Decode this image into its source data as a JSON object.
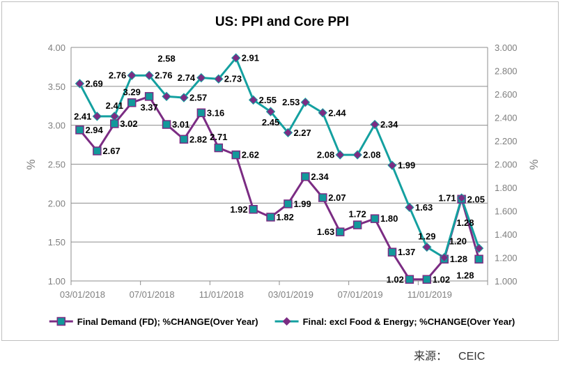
{
  "chart_data": {
    "type": "line",
    "title": "US: PPI and Core PPI",
    "ylabel_left": "%",
    "ylabel_right": "%",
    "ylim_left": [
      1.0,
      4.0
    ],
    "ylim_right": [
      1.0,
      3.0
    ],
    "yticks_left": [
      "4.00",
      "3.50",
      "3.00",
      "2.50",
      "2.00",
      "1.50",
      "1.00"
    ],
    "yticks_right": [
      "3.000",
      "2.800",
      "2.600",
      "2.400",
      "2.200",
      "2.000",
      "1.800",
      "1.600",
      "1.400",
      "1.200",
      "1.000"
    ],
    "grid": true,
    "legend_position": "bottom",
    "categories": [
      "03/2018",
      "04/2018",
      "05/2018",
      "06/2018",
      "07/2018",
      "08/2018",
      "09/2018",
      "10/2018",
      "11/2018",
      "12/2018",
      "01/2019",
      "02/2019",
      "03/2019",
      "04/2019",
      "05/2019",
      "06/2019",
      "07/2019",
      "08/2019",
      "09/2019",
      "10/2019",
      "11/2019",
      "12/2019",
      "01/2020",
      "02/2020"
    ],
    "xtick_labels": [
      {
        "index": 0,
        "label": "03/01/2018"
      },
      {
        "index": 4,
        "label": "07/01/2018"
      },
      {
        "index": 8,
        "label": "11/01/2018"
      },
      {
        "index": 12,
        "label": "03/01/2019"
      },
      {
        "index": 16,
        "label": "07/01/2019"
      },
      {
        "index": 20,
        "label": "11/01/2019"
      }
    ],
    "series": [
      {
        "name": "Final Demand (FD); %CHANGE(Over Year)",
        "axis": "left",
        "color": "#7B2C83",
        "marker": "square",
        "marker_color": "#12999B",
        "values": [
          2.94,
          2.67,
          3.02,
          3.29,
          3.37,
          3.01,
          2.82,
          3.16,
          2.71,
          2.62,
          1.92,
          1.82,
          1.99,
          2.34,
          2.07,
          1.63,
          1.72,
          1.8,
          1.37,
          1.02,
          1.02,
          1.28,
          2.05,
          1.28
        ]
      },
      {
        "name": "Final: excl Food & Energy; %CHANGE(Over Year)",
        "axis": "right",
        "color": "#14A0A0",
        "marker": "diamond",
        "marker_color": "#7B2C83",
        "values": [
          2.69,
          2.41,
          2.41,
          2.76,
          2.76,
          2.58,
          2.57,
          2.74,
          2.73,
          2.91,
          2.55,
          2.45,
          2.27,
          2.53,
          2.44,
          2.08,
          2.08,
          2.34,
          1.99,
          1.63,
          1.29,
          1.2,
          1.71,
          1.28
        ]
      }
    ]
  },
  "source": {
    "label": "来源：",
    "value": "CEIC"
  }
}
